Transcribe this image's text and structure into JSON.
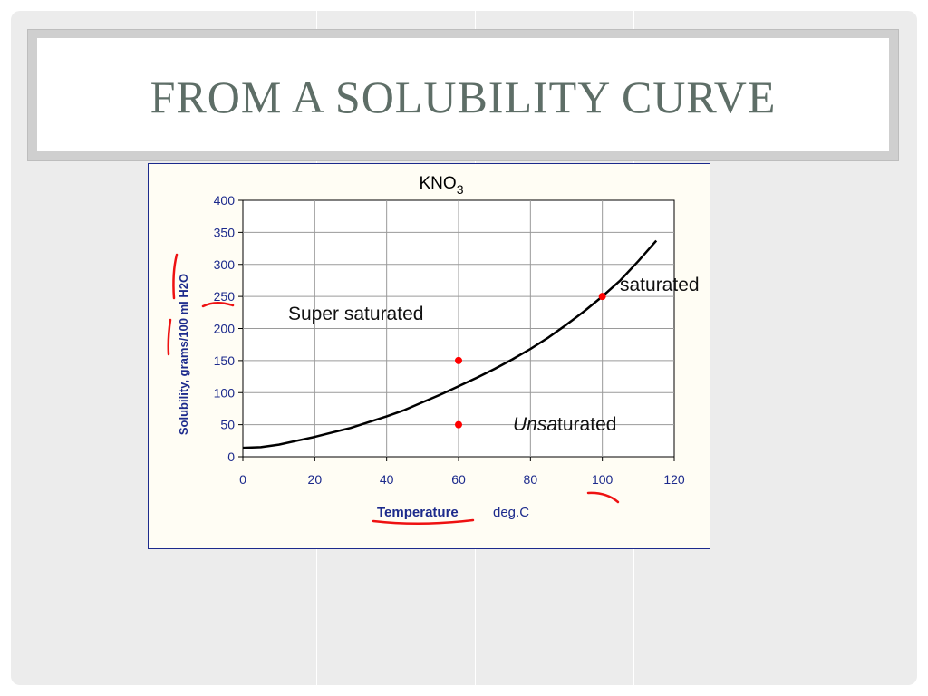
{
  "slide": {
    "title": "FROM A SOLUBILITY CURVE"
  },
  "chart_data": {
    "type": "line",
    "title": "KNO",
    "title_subscript": "3",
    "xlabel_main": "Temperature",
    "xlabel_unit": "deg.C",
    "ylabel": "Solubility, grams/100 ml H2O",
    "xlim": [
      0,
      120
    ],
    "ylim": [
      0,
      400
    ],
    "x_ticks": [
      0,
      20,
      40,
      60,
      80,
      100,
      120
    ],
    "y_ticks": [
      0,
      50,
      100,
      150,
      200,
      250,
      300,
      350,
      400
    ],
    "grid": true,
    "series": [
      {
        "x": [
          0,
          5,
          10,
          15,
          20,
          25,
          30,
          35,
          40,
          45,
          50,
          55,
          60,
          65,
          70,
          75,
          80,
          85,
          90,
          95,
          100,
          105,
          110,
          115
        ],
        "y": [
          14,
          15,
          19,
          25,
          31,
          38,
          45,
          54,
          63,
          73,
          85,
          97,
          110,
          123,
          137,
          152,
          168,
          186,
          206,
          227,
          250,
          275,
          305,
          337
        ]
      }
    ],
    "points": [
      {
        "x": 60,
        "y": 150
      },
      {
        "x": 60,
        "y": 50
      },
      {
        "x": 100,
        "y": 250
      }
    ],
    "annotations": {
      "super_saturated": "Super saturated",
      "saturated": "saturated",
      "unsaturated_italic": "Uns",
      "unsaturated_italic2": "a",
      "unsaturated_rest": "turated"
    },
    "colors": {
      "axis_text": "#1c2a8c",
      "curve": "#000000",
      "marker": "#ff0000",
      "grid": "#9a9a9a"
    }
  }
}
